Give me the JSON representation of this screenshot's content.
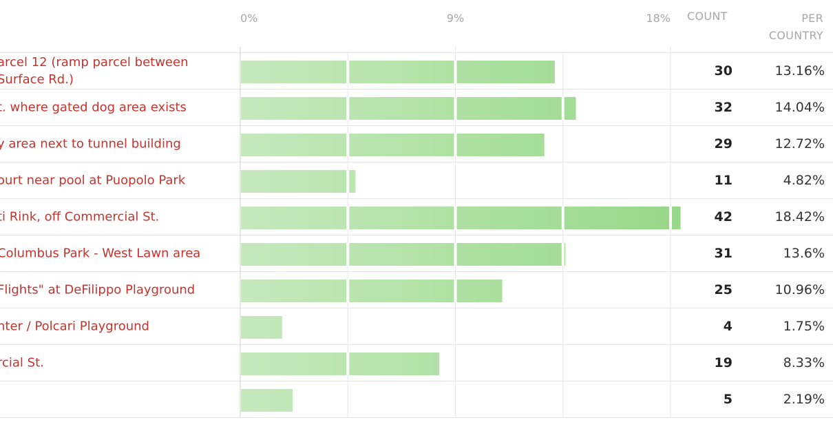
{
  "chart_data": {
    "type": "bar",
    "orientation": "horizontal",
    "axis_ticks": [
      "0%",
      "9%",
      "18%"
    ],
    "xlim": [
      0,
      18
    ],
    "headers": {
      "count": "COUNT",
      "per_country": "PER\nCOUNTRY"
    },
    "rows": [
      {
        "label": "arcel 12 (ramp parcel between\nSurface Rd.)",
        "count": "30",
        "percent": 13.16,
        "percent_label": "13.16%"
      },
      {
        "label": "t. where gated dog area exists",
        "count": "32",
        "percent": 14.04,
        "percent_label": "14.04%"
      },
      {
        "label": "y area next to tunnel building",
        "count": "29",
        "percent": 12.72,
        "percent_label": "12.72%"
      },
      {
        "label": "ourt near pool at Puopolo Park",
        "count": "11",
        "percent": 4.82,
        "percent_label": "4.82%"
      },
      {
        "label": "ti Rink, off Commercial St.",
        "count": "42",
        "percent": 18.42,
        "percent_label": "18.42%"
      },
      {
        "label": "Columbus Park - West Lawn area",
        "count": "31",
        "percent": 13.6,
        "percent_label": "13.6%"
      },
      {
        "label": "Flights\" at DeFilippo Playground",
        "count": "25",
        "percent": 10.96,
        "percent_label": "10.96%"
      },
      {
        "label": "nter / Polcari Playground",
        "count": "4",
        "percent": 1.75,
        "percent_label": "1.75%"
      },
      {
        "label": "rcial St.",
        "count": "19",
        "percent": 8.33,
        "percent_label": "8.33%"
      },
      {
        "label": "",
        "count": "5",
        "percent": 2.19,
        "percent_label": "2.19%"
      }
    ],
    "bar_color": "#a8dc9b"
  }
}
